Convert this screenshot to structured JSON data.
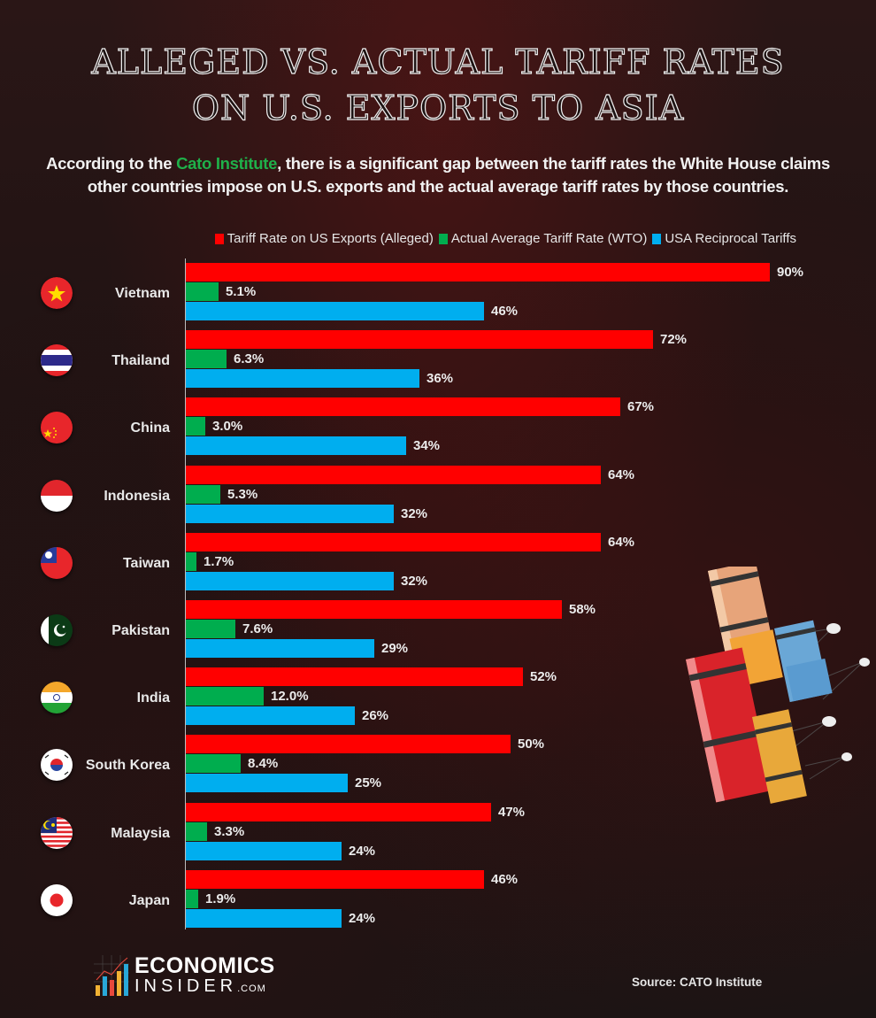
{
  "title_line1": "Alleged vs. Actual Tariff Rates",
  "title_line2": "on U.S. Exports to Asia",
  "subtitle": {
    "prefix": "According to the ",
    "highlight": "Cato Institute",
    "suffix": ", there is a significant gap between the tariff rates the White House claims other countries impose on U.S. exports and the actual average tariff rates by those countries."
  },
  "colors": {
    "alleged": "#ff0000",
    "actual": "#00ad4e",
    "reciprocal": "#00aeef",
    "highlight": "#1fb14a"
  },
  "legend": [
    {
      "label": "Tariff Rate on US Exports (Alleged)",
      "color": "#ff0000"
    },
    {
      "label": "Actual Average Tariff Rate (WTO)",
      "color": "#00ad4e"
    },
    {
      "label": "USA Reciprocal Tariffs",
      "color": "#00aeef"
    }
  ],
  "chart_data": {
    "type": "bar",
    "orientation": "horizontal",
    "title": "Alleged vs. Actual Tariff Rates on U.S. Exports to Asia",
    "subtitle": "According to the Cato Institute, there is a significant gap between the tariff rates the White House claims other countries impose on U.S. exports and the actual average tariff rates by those countries.",
    "categories": [
      "Vietnam",
      "Thailand",
      "China",
      "Indonesia",
      "Taiwan",
      "Pakistan",
      "India",
      "South Korea",
      "Malaysia",
      "Japan"
    ],
    "series": [
      {
        "name": "Tariff Rate on US Exports (Alleged)",
        "color": "#ff0000",
        "values": [
          90,
          72,
          67,
          64,
          64,
          58,
          52,
          50,
          47,
          46
        ]
      },
      {
        "name": "Actual Average Tariff Rate (WTO)",
        "color": "#00ad4e",
        "values": [
          5.1,
          6.3,
          3.0,
          5.3,
          1.7,
          7.6,
          12.0,
          8.4,
          3.3,
          1.9
        ]
      },
      {
        "name": "USA Reciprocal Tariffs",
        "color": "#00aeef",
        "values": [
          46,
          36,
          34,
          32,
          32,
          29,
          26,
          25,
          24,
          24
        ]
      }
    ],
    "value_labels": [
      [
        "90%",
        "5.1%",
        "46%"
      ],
      [
        "72%",
        "6.3%",
        "36%"
      ],
      [
        "67%",
        "3.0%",
        "34%"
      ],
      [
        "64%",
        "5.3%",
        "32%"
      ],
      [
        "64%",
        "1.7%",
        "32%"
      ],
      [
        "58%",
        "7.6%",
        "29%"
      ],
      [
        "52%",
        "12.0%",
        "26%"
      ],
      [
        "50%",
        "8.4%",
        "25%"
      ],
      [
        "47%",
        "3.3%",
        "24%"
      ],
      [
        "46%",
        "1.9%",
        "24%"
      ]
    ],
    "xlabel": "",
    "ylabel": "",
    "xlim": [
      0,
      90
    ],
    "grid": false,
    "legend_position": "top"
  },
  "countries": [
    {
      "name": "Vietnam",
      "flag": "vietnam"
    },
    {
      "name": "Thailand",
      "flag": "thailand"
    },
    {
      "name": "China",
      "flag": "china"
    },
    {
      "name": "Indonesia",
      "flag": "indonesia"
    },
    {
      "name": "Taiwan",
      "flag": "taiwan"
    },
    {
      "name": "Pakistan",
      "flag": "pakistan"
    },
    {
      "name": "India",
      "flag": "india"
    },
    {
      "name": "South Korea",
      "flag": "south-korea"
    },
    {
      "name": "Malaysia",
      "flag": "malaysia"
    },
    {
      "name": "Japan",
      "flag": "japan"
    }
  ],
  "logo": {
    "line1": "ECONOMICS",
    "line2": "INSIDER",
    "suffix": ".COM"
  },
  "source": "Source: CATO Institute"
}
